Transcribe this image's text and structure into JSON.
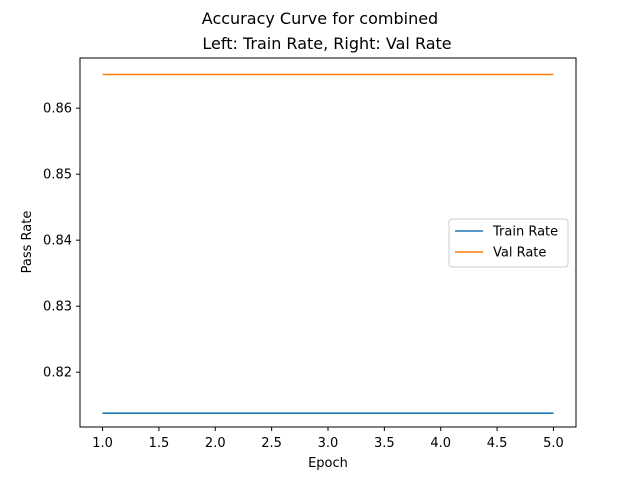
{
  "chart_data": {
    "type": "line",
    "title": "Accuracy Curve for combined",
    "subtitle": "Left: Train Rate, Right: Val Rate",
    "xlabel": "Epoch",
    "ylabel": "Pass Rate",
    "xlim": [
      0.8,
      5.2
    ],
    "ylim": [
      0.8117,
      0.8676
    ],
    "x_ticks": [
      1.0,
      1.5,
      2.0,
      2.5,
      3.0,
      3.5,
      4.0,
      4.5,
      5.0
    ],
    "x_tick_labels": [
      "1.0",
      "1.5",
      "2.0",
      "2.5",
      "3.0",
      "3.5",
      "4.0",
      "4.5",
      "5.0"
    ],
    "y_ticks": [
      0.82,
      0.83,
      0.84,
      0.85,
      0.86
    ],
    "y_tick_labels": [
      "0.82",
      "0.83",
      "0.84",
      "0.85",
      "0.86"
    ],
    "grid": false,
    "legend_position": "center-right",
    "x": [
      1,
      2,
      3,
      4,
      5
    ],
    "series": [
      {
        "name": "Train Rate",
        "color": "#1f77b4",
        "values": [
          0.8138,
          0.8138,
          0.8138,
          0.8138,
          0.8138
        ]
      },
      {
        "name": "Val Rate",
        "color": "#ff7f0e",
        "values": [
          0.8651,
          0.8651,
          0.8651,
          0.8651,
          0.8651
        ]
      }
    ]
  }
}
